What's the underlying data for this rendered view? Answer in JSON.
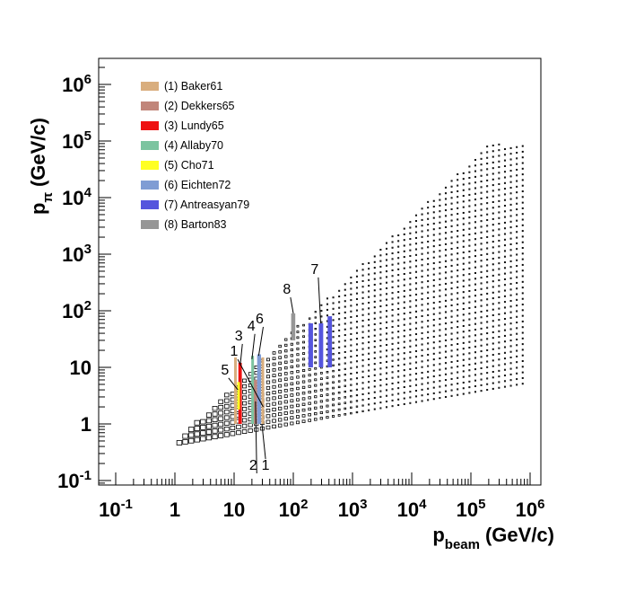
{
  "chart_data": {
    "type": "scatter",
    "subtype": "2D box-histogram (population density) with overlaid experimental coverage bands",
    "x_axis": {
      "title_main": "p",
      "title_subscript": "beam",
      "title_units": "(GeV/c)",
      "scale": "log",
      "range": [
        0.1,
        2000000
      ],
      "tick_labels": [
        {
          "base": "10",
          "exp": "-1",
          "value": 0.1
        },
        {
          "base": "1",
          "exp": "",
          "value": 1
        },
        {
          "base": "10",
          "exp": "",
          "value": 10
        },
        {
          "base": "10",
          "exp": "2",
          "value": 100
        },
        {
          "base": "10",
          "exp": "3",
          "value": 1000
        },
        {
          "base": "10",
          "exp": "4",
          "value": 10000
        },
        {
          "base": "10",
          "exp": "5",
          "value": 100000
        },
        {
          "base": "10",
          "exp": "6",
          "value": 1000000
        }
      ]
    },
    "y_axis": {
      "title_main": "p",
      "title_subscript": "π",
      "title_units": "(GeV/c)",
      "scale": "log",
      "range": [
        0.08,
        3000000
      ],
      "tick_labels": [
        {
          "base": "10",
          "exp": "-1",
          "value": 0.1
        },
        {
          "base": "1",
          "exp": "",
          "value": 1
        },
        {
          "base": "10",
          "exp": "",
          "value": 10
        },
        {
          "base": "10",
          "exp": "2",
          "value": 100
        },
        {
          "base": "10",
          "exp": "3",
          "value": 1000
        },
        {
          "base": "10",
          "exp": "4",
          "value": 10000
        },
        {
          "base": "10",
          "exp": "5",
          "value": 100000
        },
        {
          "base": "10",
          "exp": "6",
          "value": 1000000
        }
      ]
    },
    "histogram": {
      "description": "Kinematic coverage of pion momentum vs beam momentum; cell box size proportional to population, dense at low momenta",
      "x_min": 0.75,
      "x_max": 900000,
      "x_bins_per_decade": 10,
      "y_bins_per_decade": 10,
      "y_low_slope_vs_log_xbeam": 0.18,
      "y_low_at_x_1": 0.45,
      "y_high_factor": 0.45,
      "y_high_cap": 90000
    },
    "legend": {
      "position": "top-left",
      "entries": [
        {
          "id": 1,
          "label": "(1) Baker61",
          "color": "#d9ae7e"
        },
        {
          "id": 2,
          "label": "(2) Dekkers65",
          "color": "#c1857a"
        },
        {
          "id": 3,
          "label": "(3) Lundy65",
          "color": "#ee1111"
        },
        {
          "id": 4,
          "label": "(4) Allaby70",
          "color": "#7cc4a0"
        },
        {
          "id": 5,
          "label": "(5) Cho71",
          "color": "#ffff22"
        },
        {
          "id": 6,
          "label": "(6) Eichten72",
          "color": "#7f9cd4"
        },
        {
          "id": 7,
          "label": "(7) Antreasyan79",
          "color": "#5555dd"
        },
        {
          "id": 8,
          "label": "(8) Barton83",
          "color": "#969696"
        }
      ]
    },
    "experiments": [
      {
        "id": 1,
        "label_text": "1",
        "label_pos": [
          10,
          16
        ],
        "bands": [
          {
            "x_lo": 10.0,
            "x_hi": 11.0,
            "y_lo": 1.0,
            "y_hi": 15.0
          },
          {
            "x_lo": 29.0,
            "x_hi": 32.0,
            "y_lo": 1.0,
            "y_hi": 15.0
          }
        ],
        "leader_to": [
          31,
          2
        ],
        "leader_label": "1",
        "leader_label_pos": [
          34,
          0.155
        ]
      },
      {
        "id": 2,
        "label_text": "2",
        "label_pos": [
          21,
          0.155
        ],
        "bands": [
          {
            "x_lo": 20.5,
            "x_hi": 24.5,
            "y_lo": 1.0,
            "y_hi": 6.0
          }
        ],
        "leader_to": [
          23,
          2.5
        ]
      },
      {
        "id": 3,
        "label_text": "3",
        "label_pos": [
          12,
          30
        ],
        "bands": [
          {
            "x_lo": 11.8,
            "x_hi": 13.5,
            "y_lo": 1.0,
            "y_hi": 12.0
          }
        ],
        "leader_to": [
          12.7,
          11
        ]
      },
      {
        "id": 4,
        "label_text": "4",
        "label_pos": [
          19.5,
          45
        ],
        "bands": [
          {
            "x_lo": 19.5,
            "x_hi": 20.5,
            "y_lo": 1.0,
            "y_hi": 16.0
          }
        ],
        "leader_to": [
          20,
          14
        ]
      },
      {
        "id": 5,
        "label_text": "5",
        "label_pos": [
          7,
          7.5
        ],
        "bands": [
          {
            "x_lo": 11.3,
            "x_hi": 12.5,
            "y_lo": 1.8,
            "y_hi": 5.5
          }
        ],
        "leader_to": [
          11.6,
          4
        ]
      },
      {
        "id": 6,
        "label_text": "6",
        "label_pos": [
          27,
          60
        ],
        "bands": [
          {
            "x_lo": 24.5,
            "x_hi": 28.5,
            "y_lo": 1.0,
            "y_hi": 17.0
          }
        ],
        "leader_to": [
          26,
          16
        ]
      },
      {
        "id": 7,
        "label_text": "7",
        "label_pos": [
          230,
          450
        ],
        "bands": [
          {
            "x_lo": 180,
            "x_hi": 215,
            "y_lo": 10,
            "y_hi": 60
          },
          {
            "x_lo": 270,
            "x_hi": 320,
            "y_lo": 10,
            "y_hi": 60
          },
          {
            "x_lo": 380,
            "x_hi": 450,
            "y_lo": 10,
            "y_hi": 80
          }
        ],
        "leader_to": [
          290,
          60
        ]
      },
      {
        "id": 8,
        "label_text": "8",
        "label_pos": [
          78,
          200
        ],
        "bands": [
          {
            "x_lo": 92,
            "x_hi": 108,
            "y_lo": 30,
            "y_hi": 90
          }
        ],
        "leader_to": [
          100,
          90
        ]
      }
    ]
  }
}
